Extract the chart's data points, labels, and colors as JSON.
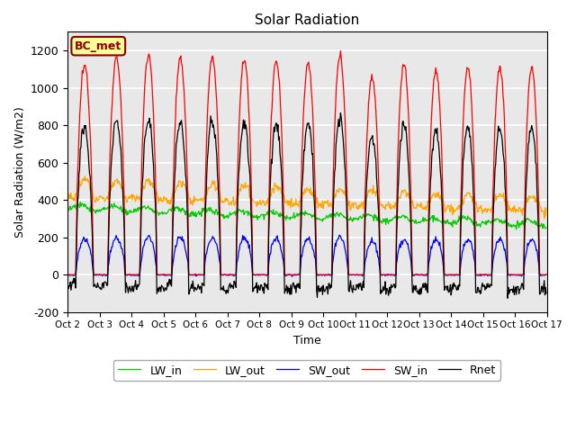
{
  "title": "Solar Radiation",
  "ylabel": "Solar Radiation (W/m2)",
  "xlabel": "Time",
  "station_label": "BC_met",
  "ylim": [
    -200,
    1300
  ],
  "yticks": [
    -200,
    0,
    200,
    400,
    600,
    800,
    1000,
    1200
  ],
  "colors": {
    "SW_in": "#FF0000",
    "SW_out": "#0000FF",
    "LW_in": "#00CC00",
    "LW_out": "#FFA500",
    "Rnet": "#000000"
  },
  "legend_labels": [
    "SW_in",
    "SW_out",
    "LW_in",
    "LW_out",
    "Rnet"
  ],
  "background_color": "#FFFFFF",
  "plot_bg_color": "#E8E8E8",
  "grid_color": "#FFFFFF",
  "figsize": [
    6.4,
    4.8
  ],
  "dpi": 100
}
